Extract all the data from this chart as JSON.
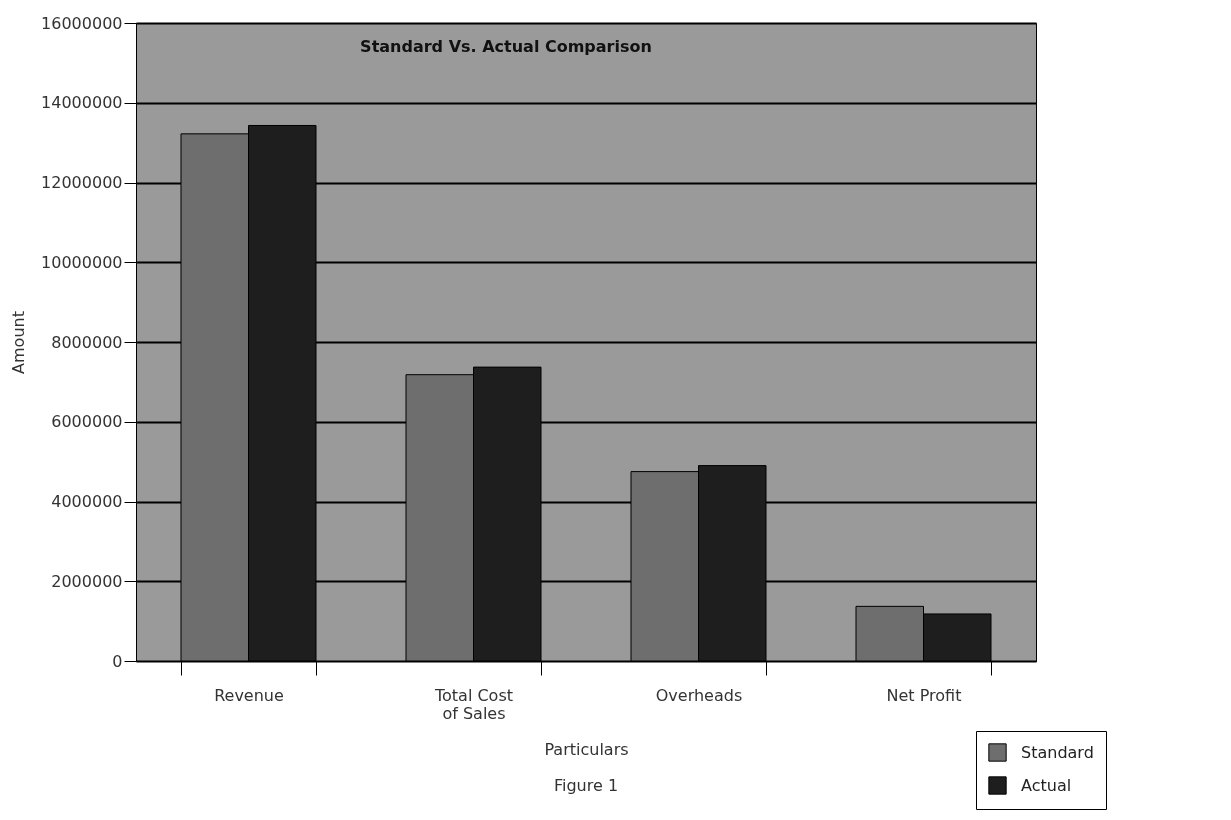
{
  "chart_data": {
    "type": "bar",
    "title": "Standard Vs. Actual Comparison",
    "xlabel": "Particulars",
    "ylabel": "Amount",
    "categories": [
      "Revenue",
      "Total Cost of Sales",
      "Overheads",
      "Net Profit"
    ],
    "series": [
      {
        "name": "Standard",
        "color": "#6e6e6e",
        "values": [
          13220000,
          7180000,
          4750000,
          1370000
        ]
      },
      {
        "name": "Actual",
        "color": "#1e1e1e",
        "values": [
          13430000,
          7370000,
          4900000,
          1180000
        ]
      }
    ],
    "ylim": [
      0,
      16000000
    ],
    "yticks": [
      0,
      2000000,
      4000000,
      6000000,
      8000000,
      10000000,
      12000000,
      14000000,
      16000000
    ],
    "grid": "y",
    "legend": "bottom right",
    "annotations": [
      "Figure 1"
    ]
  }
}
